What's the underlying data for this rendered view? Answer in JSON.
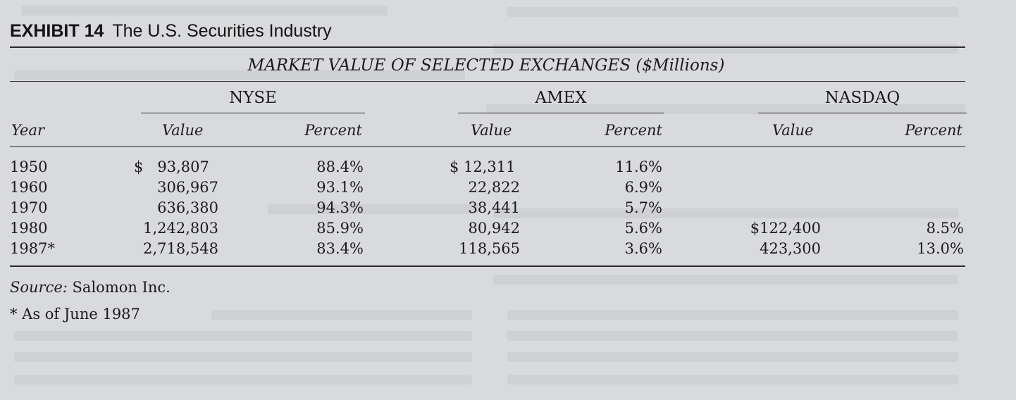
{
  "exhibit": {
    "number": "EXHIBIT 14",
    "title": "The U.S. Securities Industry"
  },
  "table": {
    "caption": "MARKET VALUE OF SELECTED EXCHANGES ($Millions)",
    "groups": [
      "NYSE",
      "AMEX",
      "NASDAQ"
    ],
    "column_headers": {
      "year": "Year",
      "nyse_value": "Value",
      "nyse_percent": "Percent",
      "amex_value": "Value",
      "amex_percent": "Percent",
      "nasdaq_value": "Value",
      "nasdaq_percent": "Percent"
    },
    "rows": [
      {
        "year": "1950",
        "nyse_value": "$   93,807",
        "nyse_percent": "88.4%",
        "amex_value": "$ 12,311",
        "amex_percent": "11.6%",
        "nasdaq_value": "",
        "nasdaq_percent": ""
      },
      {
        "year": "1960",
        "nyse_value": "306,967",
        "nyse_percent": "93.1%",
        "amex_value": "22,822",
        "amex_percent": "6.9%",
        "nasdaq_value": "",
        "nasdaq_percent": ""
      },
      {
        "year": "1970",
        "nyse_value": "636,380",
        "nyse_percent": "94.3%",
        "amex_value": "38,441",
        "amex_percent": "5.7%",
        "nasdaq_value": "",
        "nasdaq_percent": ""
      },
      {
        "year": "1980",
        "nyse_value": "1,242,803",
        "nyse_percent": "85.9%",
        "amex_value": "80,942",
        "amex_percent": "5.6%",
        "nasdaq_value": "$122,400",
        "nasdaq_percent": "8.5%"
      },
      {
        "year": "1987*",
        "nyse_value": "2,718,548",
        "nyse_percent": "83.4%",
        "amex_value": "118,565",
        "amex_percent": "3.6%",
        "nasdaq_value": "423,300",
        "nasdaq_percent": "13.0%"
      }
    ]
  },
  "source": {
    "label": "Source:",
    "text": "Salomon Inc."
  },
  "footnote": "* As of June 1987"
}
